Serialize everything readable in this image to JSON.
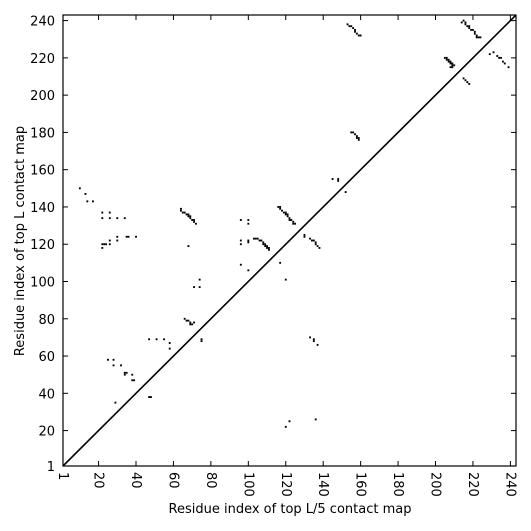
{
  "chart_data": {
    "type": "scatter",
    "xlabel": "Residue index of top L/5 contact map",
    "ylabel": "Residue index of top L contact map",
    "color": "#000000",
    "xlim": [
      1,
      243
    ],
    "ylim": [
      1,
      243
    ],
    "xticks": [
      1,
      20,
      40,
      60,
      80,
      100,
      120,
      140,
      160,
      180,
      200,
      220,
      240
    ],
    "yticks": [
      1,
      20,
      40,
      60,
      80,
      100,
      120,
      140,
      160,
      180,
      200,
      220,
      240
    ],
    "x": [
      10,
      13,
      14,
      17,
      22,
      26,
      22,
      26,
      30,
      34,
      30,
      35,
      36,
      40,
      26,
      30,
      22,
      23,
      24,
      26,
      22,
      25,
      28,
      28,
      32,
      34,
      35,
      34,
      38,
      38,
      39,
      47,
      48,
      29,
      47,
      51,
      55,
      58,
      58,
      64,
      64,
      65,
      66,
      67,
      68,
      68,
      69,
      69,
      70,
      71,
      71,
      72,
      68,
      66,
      67,
      68,
      69,
      69,
      70,
      71,
      74,
      74,
      71,
      75,
      75,
      96,
      100,
      96,
      100,
      100,
      96,
      96,
      100,
      100,
      103,
      104,
      105,
      106,
      107,
      108,
      108,
      109,
      109,
      110,
      110,
      111,
      111,
      117,
      120,
      116,
      117,
      117,
      118,
      119,
      120,
      120,
      121,
      121,
      122,
      122,
      123,
      124,
      124,
      125,
      130,
      130,
      133,
      134,
      135,
      136,
      136,
      137,
      138,
      120,
      122,
      136,
      133,
      135,
      135,
      137,
      145,
      148,
      148,
      152,
      153,
      154,
      155,
      156,
      157,
      157,
      158,
      159,
      160,
      155,
      156,
      157,
      158,
      158,
      159,
      159,
      205,
      206,
      206,
      207,
      207,
      208,
      208,
      209,
      209,
      210,
      209,
      208,
      215,
      216,
      217,
      218,
      214,
      215,
      216,
      216,
      217,
      218,
      218,
      219,
      220,
      221,
      221,
      222,
      222,
      223,
      224,
      229,
      231,
      233,
      234,
      235,
      236,
      237,
      239
    ],
    "values": [
      150,
      147,
      143,
      143,
      137,
      137,
      134,
      134,
      134,
      134,
      124,
      124,
      124,
      124,
      122,
      122,
      120,
      120,
      120,
      120,
      118,
      58,
      58,
      55,
      55,
      51,
      51,
      50,
      50,
      47,
      47,
      38,
      38,
      35,
      69,
      69,
      69,
      67,
      64,
      139,
      138,
      137,
      137,
      136,
      136,
      135,
      135,
      134,
      133,
      133,
      132,
      131,
      119,
      80,
      79,
      79,
      78,
      77,
      77,
      78,
      101,
      97,
      97,
      69,
      68,
      109,
      106,
      133,
      133,
      131,
      122,
      120,
      122,
      121,
      123,
      123,
      123,
      122,
      122,
      121,
      120,
      120,
      119,
      119,
      118,
      118,
      117,
      110,
      101,
      140,
      140,
      139,
      138,
      137,
      137,
      136,
      136,
      135,
      134,
      133,
      133,
      132,
      131,
      131,
      125,
      124,
      123,
      122,
      122,
      121,
      120,
      119,
      118,
      22,
      25,
      26,
      70,
      69,
      68,
      66,
      155,
      155,
      154,
      148,
      238,
      237,
      237,
      236,
      235,
      234,
      233,
      232,
      232,
      180,
      180,
      179,
      178,
      177,
      177,
      176,
      220,
      220,
      219,
      219,
      218,
      218,
      217,
      217,
      216,
      216,
      215,
      215,
      209,
      208,
      207,
      206,
      239,
      240,
      239,
      238,
      237,
      237,
      236,
      235,
      235,
      234,
      233,
      232,
      231,
      231,
      231,
      222,
      223,
      221,
      220,
      220,
      218,
      217,
      215
    ]
  }
}
